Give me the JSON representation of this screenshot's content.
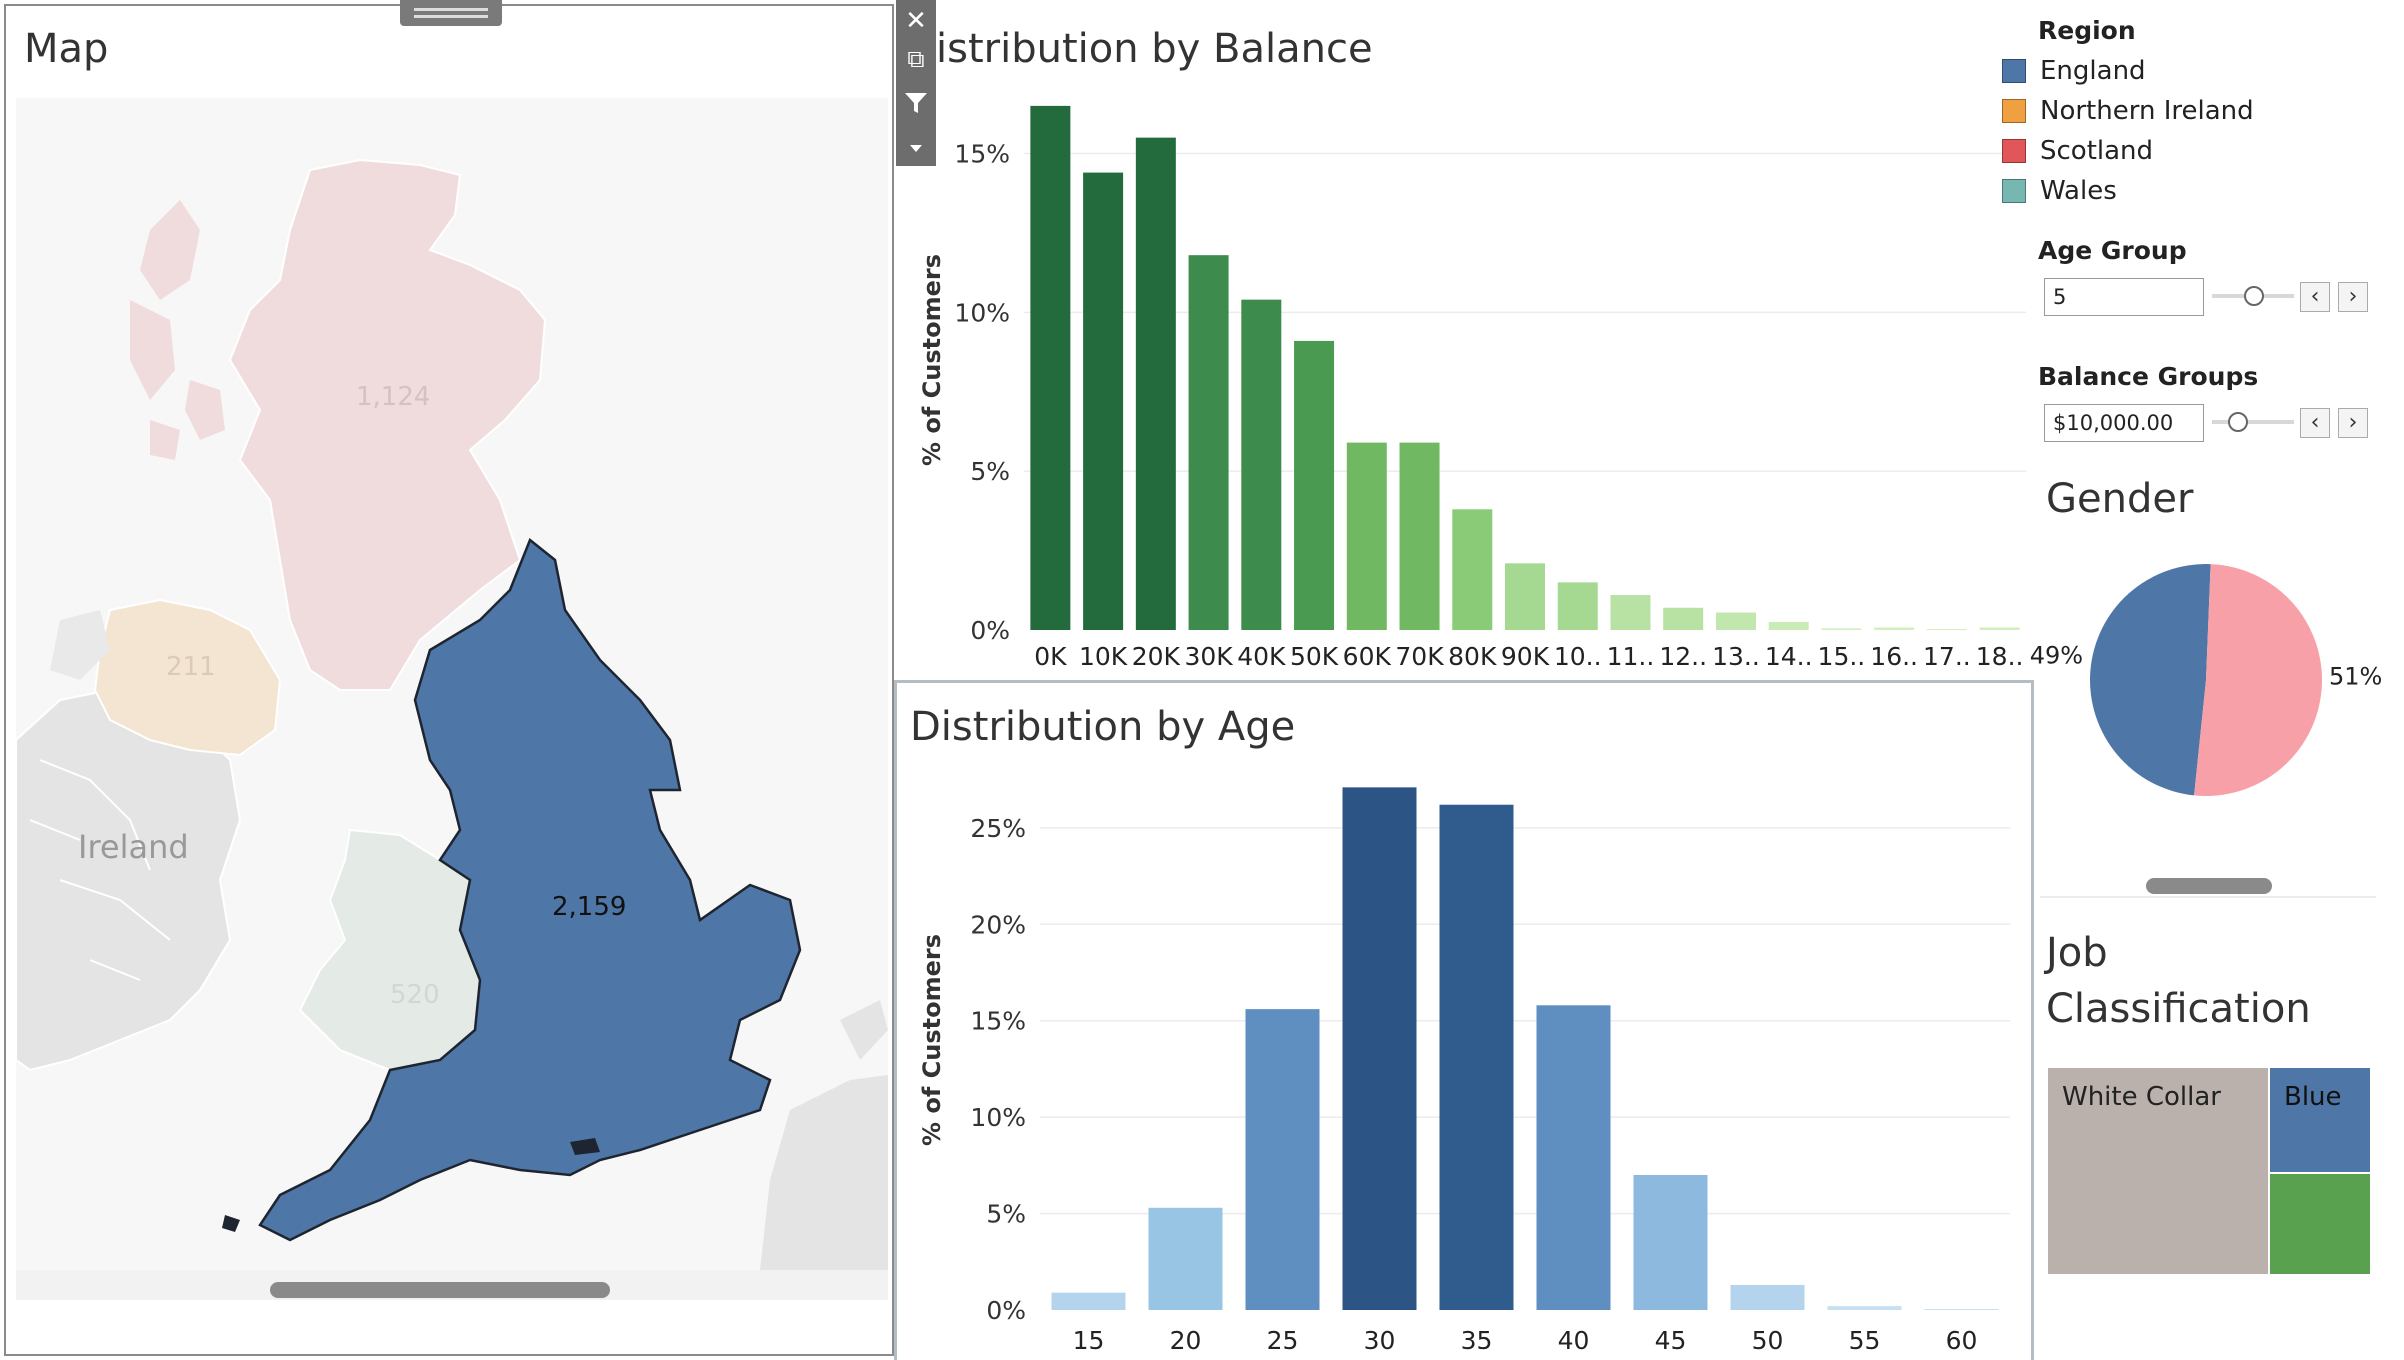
{
  "map": {
    "title": "Map",
    "labels": {
      "scotland": "1,124",
      "northern_ireland": "211",
      "ireland": "Ireland",
      "england": "2,159",
      "wales": "520"
    },
    "colors": {
      "england": "#4e76a6",
      "scotland": "#f0dcdc",
      "northern_ireland": "#f4e4d2",
      "wales": "#e4ebe6",
      "land": "#e6e6e6"
    }
  },
  "toolbar": {
    "close_icon": "close-icon",
    "popout_icon": "popout-icon",
    "filter_icon": "filter-icon",
    "dropdown_icon": "dropdown-icon"
  },
  "balance_chart": {
    "title": "istribution by Balance",
    "ylabel": "% of Customers"
  },
  "age_chart": {
    "title": "Distribution by Age",
    "ylabel": "% of Customers"
  },
  "region_legend": {
    "title": "Region",
    "items": [
      {
        "label": "England",
        "color": "#4e76a6"
      },
      {
        "label": "Northern Ireland",
        "color": "#f0a040"
      },
      {
        "label": "Scotland",
        "color": "#e15759"
      },
      {
        "label": "Wales",
        "color": "#76b7b2"
      }
    ]
  },
  "age_group": {
    "title": "Age Group",
    "value": "5"
  },
  "balance_groups": {
    "title": "Balance Groups",
    "value": "$10,000.00"
  },
  "gender": {
    "title": "Gender",
    "chart_data": {
      "type": "pie",
      "slices": [
        {
          "label": "49%",
          "value": 49,
          "color": "#4e76a6"
        },
        {
          "label": "51%",
          "value": 51,
          "color": "#f7a0a8"
        }
      ]
    }
  },
  "job": {
    "title_line1": "Job",
    "title_line2": "Classification",
    "tiles": [
      {
        "label": "White Collar",
        "color": "#bab0ac"
      },
      {
        "label": "Blue",
        "color": "#4e76a6"
      },
      {
        "label": "",
        "color": "#59a14f"
      }
    ]
  },
  "chart_data": [
    {
      "type": "bar",
      "title": "istribution by Balance",
      "ylabel": "% of Customers",
      "ylim": [
        0,
        17
      ],
      "yticks": [
        0,
        5,
        10,
        15
      ],
      "ytick_labels": [
        "0%",
        "5%",
        "10%",
        "15%"
      ],
      "categories": [
        "0K",
        "10K",
        "20K",
        "30K",
        "40K",
        "50K",
        "60K",
        "70K",
        "80K",
        "90K",
        "10..",
        "11..",
        "12..",
        "13..",
        "14..",
        "15..",
        "16..",
        "17..",
        "18.."
      ],
      "values": [
        16.5,
        14.4,
        15.5,
        11.8,
        10.4,
        9.1,
        5.9,
        5.9,
        3.8,
        2.1,
        1.5,
        1.1,
        0.7,
        0.55,
        0.25,
        0.05,
        0.08,
        0.03,
        0.08
      ],
      "colors": [
        "#236b3c",
        "#236b3c",
        "#236b3c",
        "#3d8c4d",
        "#3d8c4d",
        "#4a9b51",
        "#70b862",
        "#70b862",
        "#8acb77",
        "#a5d991",
        "#a5d991",
        "#b7e2a3",
        "#b7e2a3",
        "#c1e6ae",
        "#c9ebb6",
        "#d2efc0",
        "#d2efc0",
        "#d2efc0",
        "#d2efc0"
      ]
    },
    {
      "type": "bar",
      "title": "Distribution by Age",
      "ylabel": "% of Customers",
      "ylim": [
        0,
        28
      ],
      "yticks": [
        0,
        5,
        10,
        15,
        20,
        25
      ],
      "ytick_labels": [
        "0%",
        "5%",
        "10%",
        "15%",
        "20%",
        "25%"
      ],
      "categories": [
        "15",
        "20",
        "25",
        "30",
        "35",
        "40",
        "45",
        "50",
        "55",
        "60"
      ],
      "values": [
        0.9,
        5.3,
        15.6,
        27.1,
        26.2,
        15.8,
        7.0,
        1.3,
        0.2,
        0.05
      ],
      "colors": [
        "#b3d4ec",
        "#99c5e5",
        "#5e8fc0",
        "#2c5585",
        "#2f5c8c",
        "#5e8fc0",
        "#8cb9dd",
        "#b3d4ec",
        "#c6dff1",
        "#c6dff1"
      ]
    }
  ]
}
